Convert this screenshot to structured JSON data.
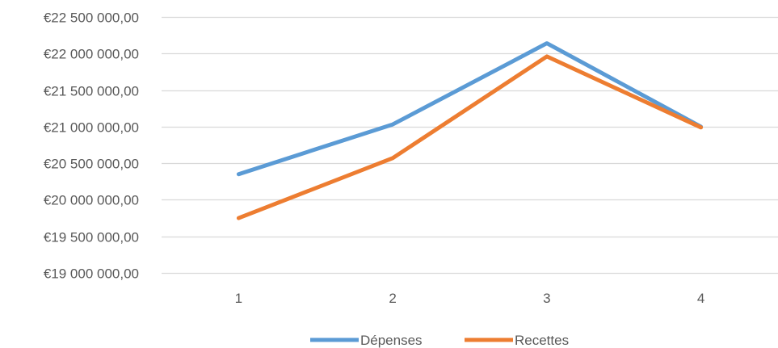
{
  "chart_data": {
    "type": "line",
    "categories": [
      "1",
      "2",
      "3",
      "4"
    ],
    "series": [
      {
        "name": "Dépenses",
        "color": "#5B9BD5",
        "values": [
          20350000,
          21030000,
          22140000,
          21000000
        ]
      },
      {
        "name": "Recettes",
        "color": "#ED7D31",
        "values": [
          19750000,
          20570000,
          21960000,
          20990000
        ]
      }
    ],
    "ylim": [
      19000000,
      22500000
    ],
    "y_ticks": [
      {
        "value": 22500000,
        "label": "€22 500 000,00"
      },
      {
        "value": 22000000,
        "label": "€22 000 000,00"
      },
      {
        "value": 21500000,
        "label": "€21 500 000,00"
      },
      {
        "value": 21000000,
        "label": "€21 000 000,00"
      },
      {
        "value": 20500000,
        "label": "€20 500 000,00"
      },
      {
        "value": 20000000,
        "label": "€20 000 000,00"
      },
      {
        "value": 19500000,
        "label": "€19 500 000,00"
      },
      {
        "value": 19000000,
        "label": "€19 000 000,00"
      }
    ],
    "grid": true,
    "gridline_color": "#D9D9D9",
    "legend_position": "bottom"
  }
}
